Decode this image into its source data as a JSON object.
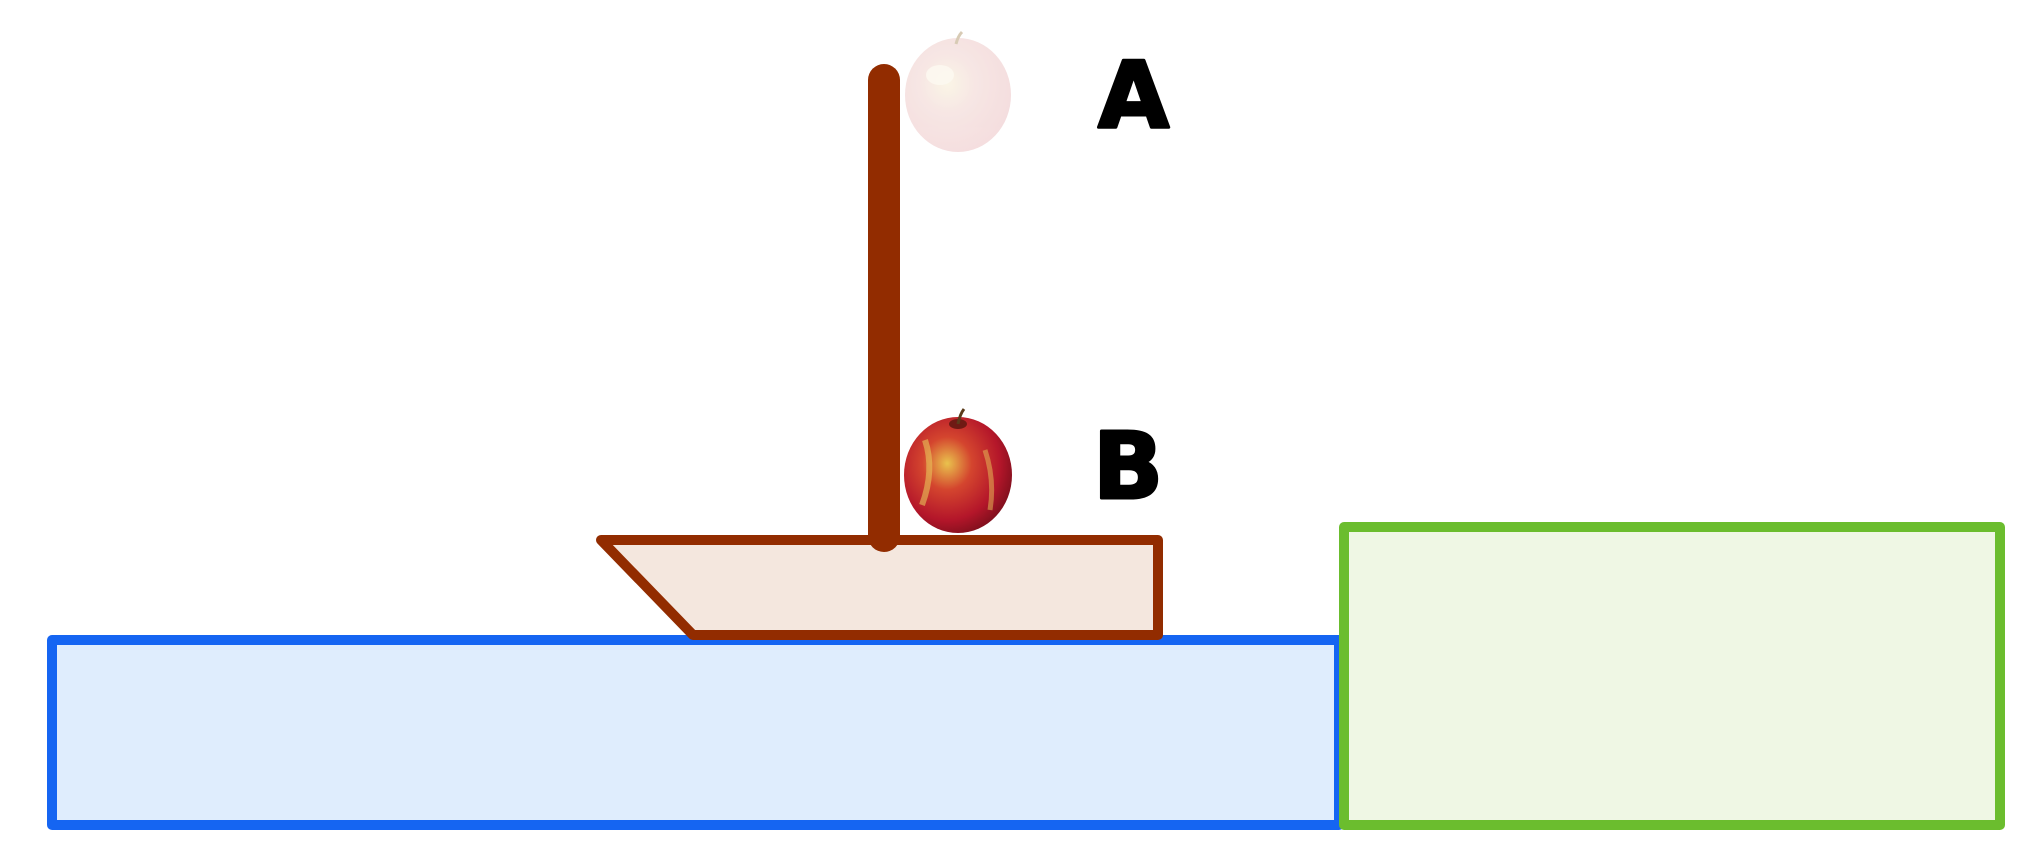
{
  "labels": {
    "top": "A",
    "bottom": "B"
  },
  "colors": {
    "water_fill": "#dfedfd",
    "water_stroke": "#1565f2",
    "dock_fill": "#eff7e4",
    "dock_stroke": "#6bbd2e",
    "boat_fill": "#f4e7de",
    "boat_stroke": "#922c00",
    "mast": "#922c00",
    "apple_red": "#c2182a",
    "apple_yellow": "#e6c64a"
  },
  "icons": {
    "apple_top": "apple-faded-icon",
    "apple_bottom": "apple-icon"
  }
}
